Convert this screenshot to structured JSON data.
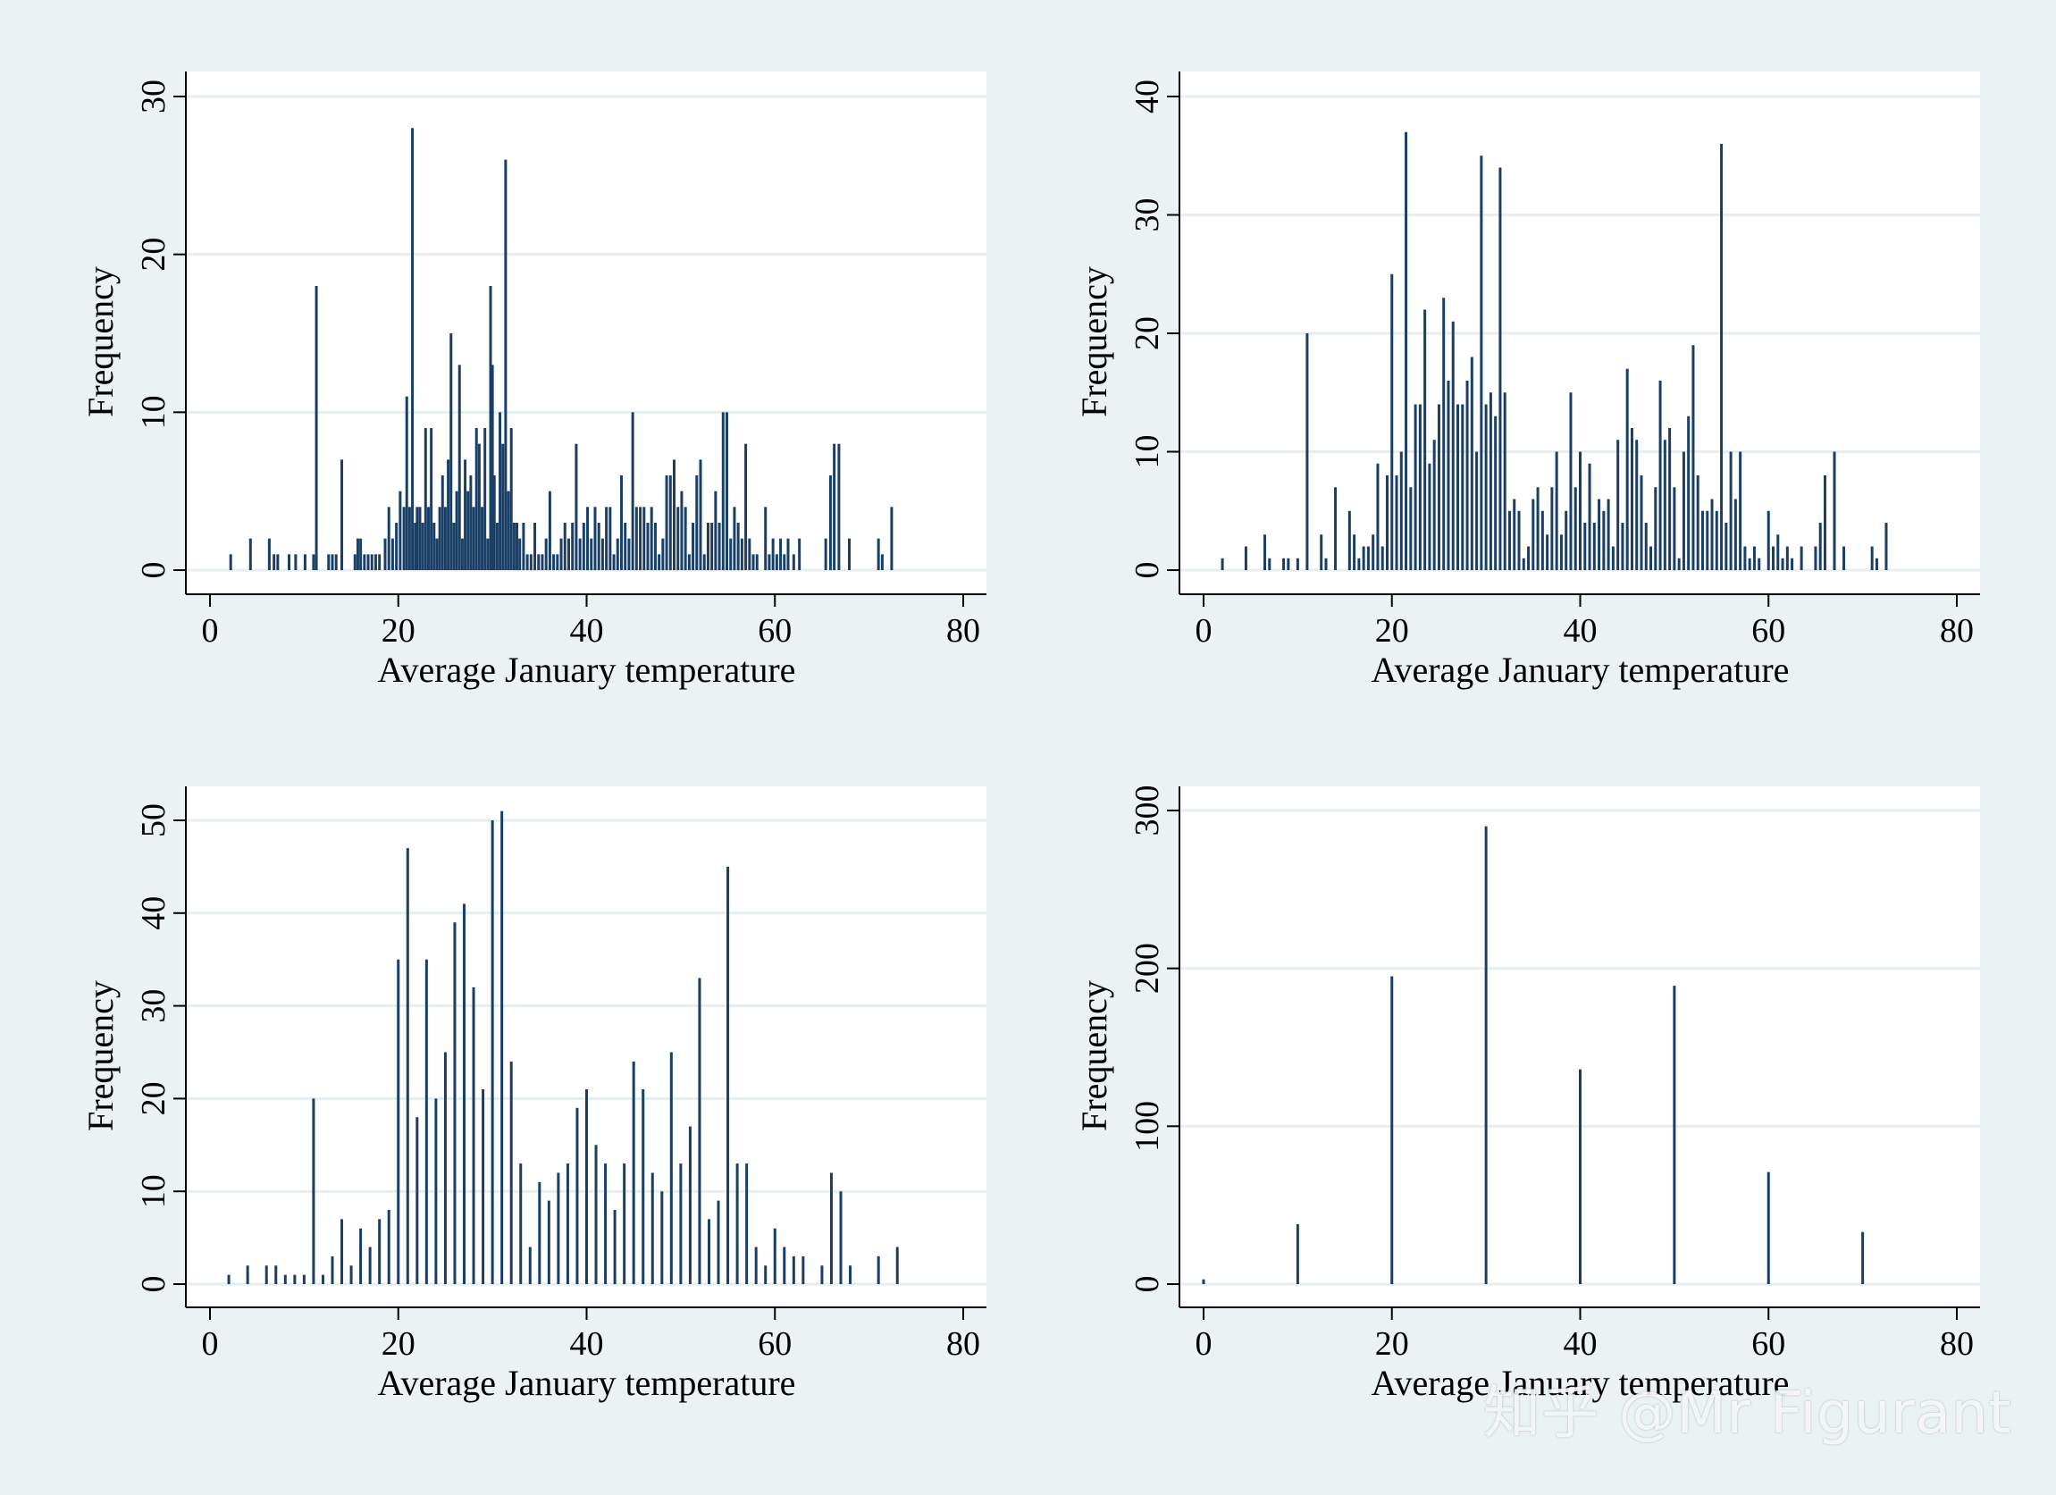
{
  "watermark": "知乎 @Mr Figurant",
  "colors": {
    "background": "#eaf2f3",
    "plot_bg": "#ffffff",
    "bar": "#1a3f66",
    "grid": "#e6eef0",
    "axis": "#000000"
  },
  "chart_data": [
    {
      "type": "bar",
      "xlabel": "Average January temperature",
      "ylabel": "Frequency",
      "xlim": [
        0,
        80
      ],
      "ylim": [
        0,
        30
      ],
      "xticks": [
        0,
        20,
        40,
        60,
        80
      ],
      "yticks": [
        0,
        10,
        20,
        30
      ],
      "grid": true,
      "bars": [
        [
          2.2,
          1
        ],
        [
          4.3,
          2
        ],
        [
          6.3,
          2
        ],
        [
          6.8,
          1
        ],
        [
          7.2,
          1
        ],
        [
          8.4,
          1
        ],
        [
          9.1,
          1
        ],
        [
          10.1,
          1
        ],
        [
          11.0,
          1
        ],
        [
          11.3,
          18
        ],
        [
          12.6,
          1
        ],
        [
          13.0,
          1
        ],
        [
          13.4,
          1
        ],
        [
          14.0,
          7
        ],
        [
          15.4,
          1
        ],
        [
          15.7,
          2
        ],
        [
          16.0,
          2
        ],
        [
          16.4,
          1
        ],
        [
          16.8,
          1
        ],
        [
          17.2,
          1
        ],
        [
          17.6,
          1
        ],
        [
          18.0,
          1
        ],
        [
          18.6,
          2
        ],
        [
          19.0,
          4
        ],
        [
          19.4,
          2
        ],
        [
          19.8,
          3
        ],
        [
          20.2,
          5
        ],
        [
          20.6,
          4
        ],
        [
          20.9,
          11
        ],
        [
          21.2,
          4
        ],
        [
          21.5,
          28
        ],
        [
          21.8,
          3
        ],
        [
          22.0,
          4
        ],
        [
          22.3,
          4
        ],
        [
          22.6,
          3
        ],
        [
          22.9,
          9
        ],
        [
          23.2,
          4
        ],
        [
          23.5,
          9
        ],
        [
          23.8,
          3
        ],
        [
          24.1,
          2
        ],
        [
          24.4,
          4
        ],
        [
          24.7,
          6
        ],
        [
          25.0,
          4
        ],
        [
          25.3,
          7
        ],
        [
          25.6,
          15
        ],
        [
          25.9,
          3
        ],
        [
          26.2,
          5
        ],
        [
          26.5,
          13
        ],
        [
          26.8,
          2
        ],
        [
          27.1,
          7
        ],
        [
          27.4,
          5
        ],
        [
          27.7,
          6
        ],
        [
          28.0,
          4
        ],
        [
          28.3,
          9
        ],
        [
          28.6,
          8
        ],
        [
          28.9,
          4
        ],
        [
          29.2,
          9
        ],
        [
          29.5,
          2
        ],
        [
          29.8,
          18
        ],
        [
          30.0,
          13
        ],
        [
          30.2,
          6
        ],
        [
          30.5,
          3
        ],
        [
          30.8,
          10
        ],
        [
          31.1,
          8
        ],
        [
          31.4,
          26
        ],
        [
          31.7,
          5
        ],
        [
          32.0,
          9
        ],
        [
          32.3,
          3
        ],
        [
          32.6,
          3
        ],
        [
          32.9,
          2
        ],
        [
          33.3,
          3
        ],
        [
          33.7,
          1
        ],
        [
          34.1,
          1
        ],
        [
          34.5,
          3
        ],
        [
          34.9,
          1
        ],
        [
          35.3,
          1
        ],
        [
          35.7,
          2
        ],
        [
          36.1,
          5
        ],
        [
          36.5,
          1
        ],
        [
          36.9,
          1
        ],
        [
          37.3,
          2
        ],
        [
          37.7,
          3
        ],
        [
          38.1,
          2
        ],
        [
          38.5,
          3
        ],
        [
          38.9,
          8
        ],
        [
          39.3,
          2
        ],
        [
          39.7,
          3
        ],
        [
          40.1,
          4
        ],
        [
          40.5,
          2
        ],
        [
          40.9,
          4
        ],
        [
          41.3,
          3
        ],
        [
          41.7,
          2
        ],
        [
          42.1,
          4
        ],
        [
          42.5,
          4
        ],
        [
          42.9,
          1
        ],
        [
          43.3,
          2
        ],
        [
          43.7,
          6
        ],
        [
          44.1,
          3
        ],
        [
          44.5,
          2
        ],
        [
          44.9,
          10
        ],
        [
          45.3,
          4
        ],
        [
          45.7,
          4
        ],
        [
          46.1,
          4
        ],
        [
          46.5,
          3
        ],
        [
          46.9,
          4
        ],
        [
          47.3,
          3
        ],
        [
          47.7,
          1
        ],
        [
          48.1,
          2
        ],
        [
          48.5,
          6
        ],
        [
          48.9,
          6
        ],
        [
          49.3,
          7
        ],
        [
          49.7,
          4
        ],
        [
          50.1,
          5
        ],
        [
          50.5,
          4
        ],
        [
          50.9,
          1
        ],
        [
          51.3,
          3
        ],
        [
          51.7,
          6
        ],
        [
          52.1,
          7
        ],
        [
          52.5,
          1
        ],
        [
          52.9,
          3
        ],
        [
          53.3,
          3
        ],
        [
          53.7,
          5
        ],
        [
          54.1,
          3
        ],
        [
          54.5,
          10
        ],
        [
          54.9,
          10
        ],
        [
          55.3,
          2
        ],
        [
          55.7,
          4
        ],
        [
          56.1,
          3
        ],
        [
          56.5,
          2
        ],
        [
          56.9,
          8
        ],
        [
          57.3,
          2
        ],
        [
          57.7,
          1
        ],
        [
          58.1,
          1
        ],
        [
          59.0,
          4
        ],
        [
          59.4,
          1
        ],
        [
          59.8,
          2
        ],
        [
          60.2,
          1
        ],
        [
          60.6,
          2
        ],
        [
          61.0,
          1
        ],
        [
          61.4,
          2
        ],
        [
          62.0,
          1
        ],
        [
          62.6,
          2
        ],
        [
          65.4,
          2
        ],
        [
          65.9,
          6
        ],
        [
          66.3,
          8
        ],
        [
          66.8,
          8
        ],
        [
          67.9,
          2
        ],
        [
          71.0,
          2
        ],
        [
          71.4,
          1
        ],
        [
          72.4,
          4
        ]
      ]
    },
    {
      "type": "bar",
      "xlabel": "Average January temperature",
      "ylabel": "Frequency",
      "xlim": [
        0,
        80
      ],
      "ylim": [
        0,
        40
      ],
      "xticks": [
        0,
        20,
        40,
        60,
        80
      ],
      "yticks": [
        0,
        10,
        20,
        30,
        40
      ],
      "grid": true,
      "bars": [
        [
          2,
          1
        ],
        [
          4.5,
          2
        ],
        [
          6.5,
          3
        ],
        [
          7,
          1
        ],
        [
          8.5,
          1
        ],
        [
          9,
          1
        ],
        [
          10,
          1
        ],
        [
          11,
          20
        ],
        [
          12.5,
          3
        ],
        [
          13,
          1
        ],
        [
          14,
          7
        ],
        [
          15.5,
          5
        ],
        [
          16,
          3
        ],
        [
          16.5,
          1
        ],
        [
          17,
          2
        ],
        [
          17.5,
          2
        ],
        [
          18,
          3
        ],
        [
          18.5,
          9
        ],
        [
          19,
          2
        ],
        [
          19.5,
          8
        ],
        [
          20,
          25
        ],
        [
          20.5,
          8
        ],
        [
          21,
          10
        ],
        [
          21.5,
          37
        ],
        [
          22,
          7
        ],
        [
          22.5,
          14
        ],
        [
          23,
          14
        ],
        [
          23.5,
          22
        ],
        [
          24,
          9
        ],
        [
          24.5,
          11
        ],
        [
          25,
          14
        ],
        [
          25.5,
          23
        ],
        [
          26,
          16
        ],
        [
          26.5,
          21
        ],
        [
          27,
          14
        ],
        [
          27.5,
          14
        ],
        [
          28,
          16
        ],
        [
          28.5,
          18
        ],
        [
          29,
          10
        ],
        [
          29.5,
          35
        ],
        [
          30,
          14
        ],
        [
          30.5,
          15
        ],
        [
          31,
          13
        ],
        [
          31.5,
          34
        ],
        [
          32,
          15
        ],
        [
          32.5,
          5
        ],
        [
          33,
          6
        ],
        [
          33.5,
          5
        ],
        [
          34,
          1
        ],
        [
          34.5,
          2
        ],
        [
          35,
          6
        ],
        [
          35.5,
          7
        ],
        [
          36,
          5
        ],
        [
          36.5,
          3
        ],
        [
          37,
          7
        ],
        [
          37.5,
          10
        ],
        [
          38,
          3
        ],
        [
          38.5,
          5
        ],
        [
          39,
          15
        ],
        [
          39.5,
          7
        ],
        [
          40,
          10
        ],
        [
          40.5,
          4
        ],
        [
          41,
          9
        ],
        [
          41.5,
          4
        ],
        [
          42,
          6
        ],
        [
          42.5,
          5
        ],
        [
          43,
          6
        ],
        [
          43.5,
          2
        ],
        [
          44,
          11
        ],
        [
          44.5,
          4
        ],
        [
          45,
          17
        ],
        [
          45.5,
          12
        ],
        [
          46,
          11
        ],
        [
          46.5,
          8
        ],
        [
          47,
          4
        ],
        [
          47.5,
          2
        ],
        [
          48,
          7
        ],
        [
          48.5,
          16
        ],
        [
          49,
          11
        ],
        [
          49.5,
          12
        ],
        [
          50,
          7
        ],
        [
          50.5,
          1
        ],
        [
          51,
          10
        ],
        [
          51.5,
          13
        ],
        [
          52,
          19
        ],
        [
          52.5,
          8
        ],
        [
          53,
          5
        ],
        [
          53.5,
          5
        ],
        [
          54,
          6
        ],
        [
          54.5,
          5
        ],
        [
          55,
          36
        ],
        [
          55.5,
          4
        ],
        [
          56,
          10
        ],
        [
          56.5,
          6
        ],
        [
          57,
          10
        ],
        [
          57.5,
          2
        ],
        [
          58,
          1
        ],
        [
          58.5,
          2
        ],
        [
          59,
          1
        ],
        [
          60,
          5
        ],
        [
          60.5,
          2
        ],
        [
          61,
          3
        ],
        [
          61.5,
          1
        ],
        [
          62,
          2
        ],
        [
          62.5,
          1
        ],
        [
          63.5,
          2
        ],
        [
          65,
          2
        ],
        [
          65.5,
          4
        ],
        [
          66,
          8
        ],
        [
          67,
          10
        ],
        [
          68,
          2
        ],
        [
          71,
          2
        ],
        [
          71.5,
          1
        ],
        [
          72.5,
          4
        ]
      ]
    },
    {
      "type": "bar",
      "xlabel": "Average January temperature",
      "ylabel": "Frequency",
      "xlim": [
        0,
        80
      ],
      "ylim": [
        0,
        50
      ],
      "xticks": [
        0,
        20,
        40,
        60,
        80
      ],
      "yticks": [
        0,
        10,
        20,
        30,
        40,
        50
      ],
      "grid": true,
      "bars": [
        [
          2,
          1
        ],
        [
          4,
          2
        ],
        [
          6,
          2
        ],
        [
          7,
          2
        ],
        [
          8,
          1
        ],
        [
          9,
          1
        ],
        [
          10,
          1
        ],
        [
          11,
          20
        ],
        [
          12,
          1
        ],
        [
          13,
          3
        ],
        [
          14,
          7
        ],
        [
          15,
          2
        ],
        [
          16,
          6
        ],
        [
          17,
          4
        ],
        [
          18,
          7
        ],
        [
          19,
          8
        ],
        [
          20,
          35
        ],
        [
          21,
          47
        ],
        [
          22,
          18
        ],
        [
          23,
          35
        ],
        [
          24,
          20
        ],
        [
          25,
          25
        ],
        [
          26,
          39
        ],
        [
          27,
          41
        ],
        [
          28,
          32
        ],
        [
          29,
          21
        ],
        [
          30,
          50
        ],
        [
          31,
          51
        ],
        [
          32,
          24
        ],
        [
          33,
          13
        ],
        [
          34,
          4
        ],
        [
          35,
          11
        ],
        [
          36,
          9
        ],
        [
          37,
          12
        ],
        [
          38,
          13
        ],
        [
          39,
          19
        ],
        [
          40,
          21
        ],
        [
          41,
          15
        ],
        [
          42,
          13
        ],
        [
          43,
          8
        ],
        [
          44,
          13
        ],
        [
          45,
          24
        ],
        [
          46,
          21
        ],
        [
          47,
          12
        ],
        [
          48,
          10
        ],
        [
          49,
          25
        ],
        [
          50,
          13
        ],
        [
          51,
          17
        ],
        [
          52,
          33
        ],
        [
          53,
          7
        ],
        [
          54,
          9
        ],
        [
          55,
          45
        ],
        [
          56,
          13
        ],
        [
          57,
          13
        ],
        [
          58,
          4
        ],
        [
          59,
          2
        ],
        [
          60,
          6
        ],
        [
          61,
          4
        ],
        [
          62,
          3
        ],
        [
          63,
          3
        ],
        [
          65,
          2
        ],
        [
          66,
          12
        ],
        [
          67,
          10
        ],
        [
          68,
          2
        ],
        [
          71,
          3
        ],
        [
          73,
          4
        ]
      ]
    },
    {
      "type": "bar",
      "xlabel": "Average January temperature",
      "ylabel": "Frequency",
      "xlim": [
        0,
        80
      ],
      "ylim": [
        0,
        300
      ],
      "xticks": [
        0,
        20,
        40,
        60,
        80
      ],
      "yticks": [
        0,
        100,
        200,
        300
      ],
      "grid": true,
      "bars": [
        [
          0,
          3
        ],
        [
          10,
          38
        ],
        [
          20,
          195
        ],
        [
          30,
          290
        ],
        [
          40,
          136
        ],
        [
          50,
          189
        ],
        [
          60,
          71
        ],
        [
          70,
          33
        ]
      ]
    }
  ]
}
